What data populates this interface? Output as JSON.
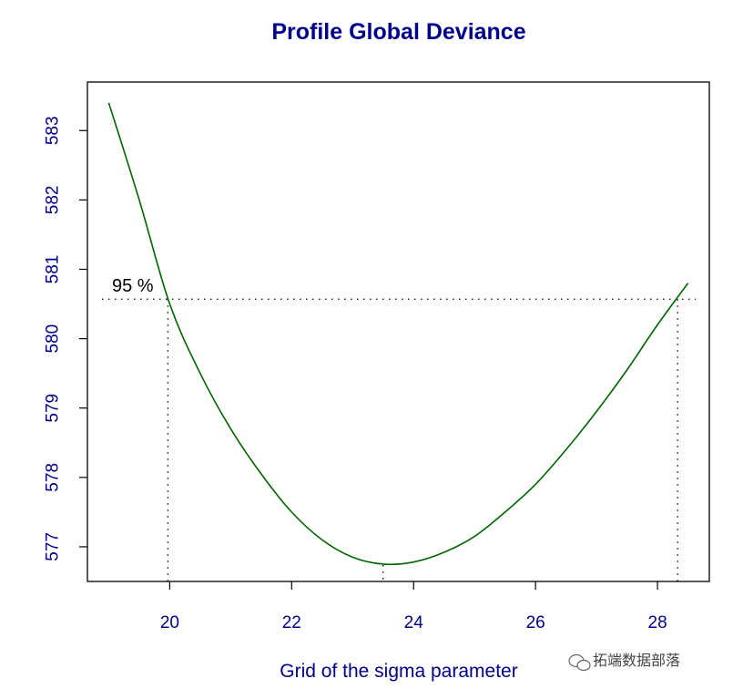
{
  "chart_data": {
    "type": "line",
    "title": "Profile Global Deviance",
    "xlabel": "Grid of the sigma parameter",
    "ylabel": "",
    "xlim": [
      18.65,
      28.85
    ],
    "ylim": [
      576.5,
      583.7
    ],
    "x_ticks": [
      20,
      22,
      24,
      26,
      28
    ],
    "y_ticks": [
      577,
      578,
      579,
      580,
      581,
      582,
      583
    ],
    "x_tick_labels": [
      "20",
      "22",
      "24",
      "26",
      "28"
    ],
    "y_tick_labels": [
      "577",
      "578",
      "579",
      "580",
      "581",
      "582",
      "583"
    ],
    "grid": false,
    "series": [
      {
        "x": [
          19.0,
          19.5,
          20.0,
          20.5,
          21.0,
          21.5,
          22.0,
          22.5,
          23.0,
          23.5,
          24.0,
          24.5,
          25.0,
          25.5,
          26.0,
          26.5,
          27.0,
          27.5,
          28.0,
          28.5
        ],
        "y": [
          583.4,
          582.0,
          580.5,
          579.5,
          578.7,
          578.05,
          577.5,
          577.1,
          576.85,
          576.75,
          576.78,
          576.92,
          577.15,
          577.5,
          577.9,
          578.4,
          578.95,
          579.55,
          580.2,
          580.8
        ],
        "color": "#006400"
      }
    ],
    "reference": {
      "level": 580.57,
      "label": "95 %",
      "ci_lower": 19.97,
      "ci_upper": 28.33,
      "minimum_x": 23.5
    },
    "colors": {
      "text": "#00008B",
      "curve": "#006400",
      "axes": "#000000"
    }
  },
  "watermark": {
    "text": "拓端数据部落",
    "icon": "wechat-icon"
  }
}
